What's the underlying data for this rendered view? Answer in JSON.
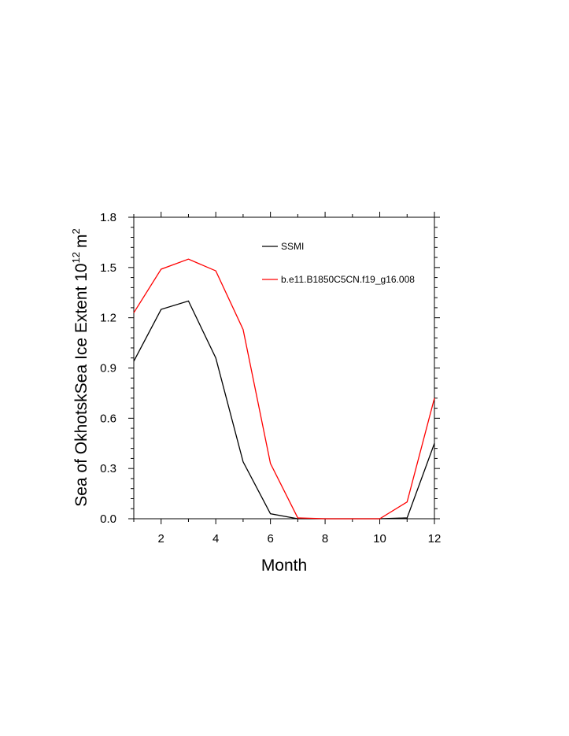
{
  "chart_data": {
    "type": "line",
    "xlabel": "Month",
    "ylabel": "Sea of OkhotskSea Ice Extent 10",
    "ylabel_exponent": "12",
    "ylabel_unit": "m",
    "ylabel_unit_exponent": "2",
    "xlim": [
      1,
      12
    ],
    "ylim": [
      0.0,
      1.8
    ],
    "x_ticks": [
      2,
      4,
      6,
      8,
      10,
      12
    ],
    "x_tick_labels": [
      "2",
      "4",
      "6",
      "8",
      "10",
      "12"
    ],
    "y_ticks": [
      0.0,
      0.3,
      0.6,
      0.9,
      1.2,
      1.5,
      1.8
    ],
    "y_tick_labels": [
      "0.0",
      "0.3",
      "0.6",
      "0.9",
      "1.2",
      "1.5",
      "1.8"
    ],
    "grid": false,
    "legend_position": "top-right",
    "x": [
      1,
      2,
      3,
      4,
      5,
      6,
      7,
      8,
      9,
      10,
      11,
      12
    ],
    "series": [
      {
        "name": "SSMI",
        "color": "#000000",
        "values": [
          0.94,
          1.25,
          1.3,
          0.96,
          0.34,
          0.03,
          0.0,
          0.0,
          0.0,
          0.0,
          0.005,
          0.45
        ]
      },
      {
        "name": "b.e11.B1850C5CN.f19_g16.008",
        "color": "#ff0000",
        "values": [
          1.23,
          1.49,
          1.55,
          1.48,
          1.13,
          0.33,
          0.005,
          0.0,
          0.0,
          0.0,
          0.1,
          0.72
        ]
      }
    ]
  }
}
